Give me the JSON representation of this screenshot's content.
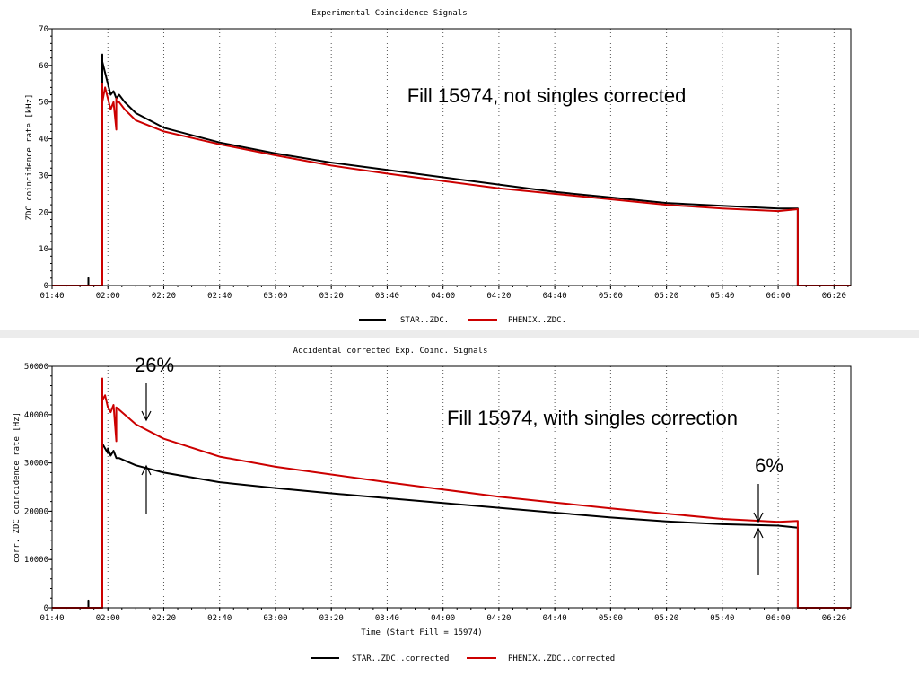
{
  "chart_data": [
    {
      "type": "line",
      "title": "Experimental Coincidence Signals",
      "xlabel": "",
      "ylabel": "ZDC coincidence rate [kHz]",
      "ylim": [
        0,
        70
      ],
      "yticks": [
        0,
        10,
        20,
        30,
        40,
        50,
        60,
        70
      ],
      "xlim": [
        "01:40",
        "06:26"
      ],
      "xticks": [
        "01:40",
        "02:00",
        "02:20",
        "02:40",
        "03:00",
        "03:20",
        "03:40",
        "04:00",
        "04:20",
        "04:40",
        "05:00",
        "05:20",
        "05:40",
        "06:00",
        "06:20"
      ],
      "grid": true,
      "legend_position": "bottom",
      "annotation": "Fill 15974, not singles corrected",
      "series": [
        {
          "name": "STAR..ZDC.",
          "color": "#000000",
          "x": [
            "01:40",
            "01:53",
            "01:53",
            "01:53",
            "01:58",
            "01:58",
            "01:58",
            "01:59",
            "02:00",
            "02:01",
            "02:02",
            "02:03",
            "02:04",
            "02:06",
            "02:10",
            "02:20",
            "02:40",
            "03:00",
            "03:20",
            "03:40",
            "04:00",
            "04:20",
            "04:40",
            "05:00",
            "05:20",
            "05:40",
            "06:00",
            "06:07",
            "06:07",
            "06:26"
          ],
          "y": [
            0,
            0,
            2,
            0,
            0,
            63,
            61,
            58,
            55,
            52,
            53,
            51,
            52,
            50,
            47,
            43,
            39,
            36,
            33.5,
            31.5,
            29.5,
            27.5,
            25.5,
            24,
            22.5,
            21.7,
            21,
            21,
            0,
            0
          ]
        },
        {
          "name": "PHENIX..ZDC.",
          "color": "#cc0000",
          "x": [
            "01:40",
            "01:58",
            "01:58",
            "01:58",
            "01:59",
            "02:00",
            "02:01",
            "02:02",
            "02:03",
            "02:03",
            "02:03",
            "02:04",
            "02:06",
            "02:10",
            "02:20",
            "02:40",
            "03:00",
            "03:20",
            "03:40",
            "04:00",
            "04:20",
            "04:40",
            "05:00",
            "05:20",
            "05:40",
            "06:00",
            "06:07",
            "06:07",
            "06:26"
          ],
          "y": [
            0,
            0,
            55,
            50,
            54,
            51,
            48,
            50,
            42.5,
            51,
            50,
            50,
            48,
            45,
            42,
            38.5,
            35.5,
            32.7,
            30.5,
            28.5,
            26.5,
            25,
            23.5,
            22,
            21,
            20.3,
            20.8,
            0,
            0
          ]
        }
      ]
    },
    {
      "type": "line",
      "title": "Accidental corrected Exp. Coinc. Signals",
      "xlabel": "Time (Start Fill = 15974)",
      "ylabel": "corr. ZDC coincidence rate [Hz]",
      "ylim": [
        0,
        50000
      ],
      "yticks": [
        0,
        10000,
        20000,
        30000,
        40000,
        50000
      ],
      "xlim": [
        "01:40",
        "06:26"
      ],
      "xticks": [
        "01:40",
        "02:00",
        "02:20",
        "02:40",
        "03:00",
        "03:20",
        "03:40",
        "04:00",
        "04:20",
        "04:40",
        "05:00",
        "05:20",
        "05:40",
        "06:00",
        "06:20"
      ],
      "grid": true,
      "legend_position": "bottom",
      "annotations": [
        "Fill 15974, with singles correction",
        "26%",
        "6%"
      ],
      "series": [
        {
          "name": "STAR..ZDC..corrected",
          "color": "#000000",
          "x": [
            "01:40",
            "01:53",
            "01:53",
            "01:53",
            "01:58",
            "01:58",
            "01:59",
            "02:00",
            "02:00",
            "02:01",
            "02:02",
            "02:03",
            "02:04",
            "02:06",
            "02:10",
            "02:20",
            "02:40",
            "03:00",
            "03:20",
            "03:40",
            "04:00",
            "04:20",
            "04:40",
            "05:00",
            "05:20",
            "05:40",
            "06:00",
            "06:07",
            "06:07",
            "06:26"
          ],
          "y": [
            0,
            0,
            1500,
            0,
            0,
            34000,
            33000,
            32000,
            33000,
            31500,
            32500,
            31000,
            31000,
            30500,
            29500,
            28000,
            26000,
            24800,
            23700,
            22700,
            21700,
            20700,
            19700,
            18700,
            17900,
            17300,
            17000,
            16600,
            0,
            0
          ]
        },
        {
          "name": "PHENIX..ZDC..corrected",
          "color": "#cc0000",
          "x": [
            "01:40",
            "01:58",
            "01:58",
            "01:58",
            "01:59",
            "02:00",
            "02:01",
            "02:02",
            "02:03",
            "02:03",
            "02:03",
            "02:04",
            "02:06",
            "02:10",
            "02:20",
            "02:40",
            "03:00",
            "03:20",
            "03:40",
            "04:00",
            "04:20",
            "04:40",
            "05:00",
            "05:20",
            "05:40",
            "06:00",
            "06:07",
            "06:07",
            "06:26"
          ],
          "y": [
            0,
            0,
            47500,
            43000,
            44000,
            41500,
            40500,
            42000,
            34500,
            41000,
            41500,
            41000,
            40000,
            38000,
            35000,
            31300,
            29200,
            27600,
            26000,
            24500,
            23000,
            21800,
            20600,
            19500,
            18400,
            17800,
            18000,
            0,
            0
          ]
        }
      ]
    }
  ]
}
